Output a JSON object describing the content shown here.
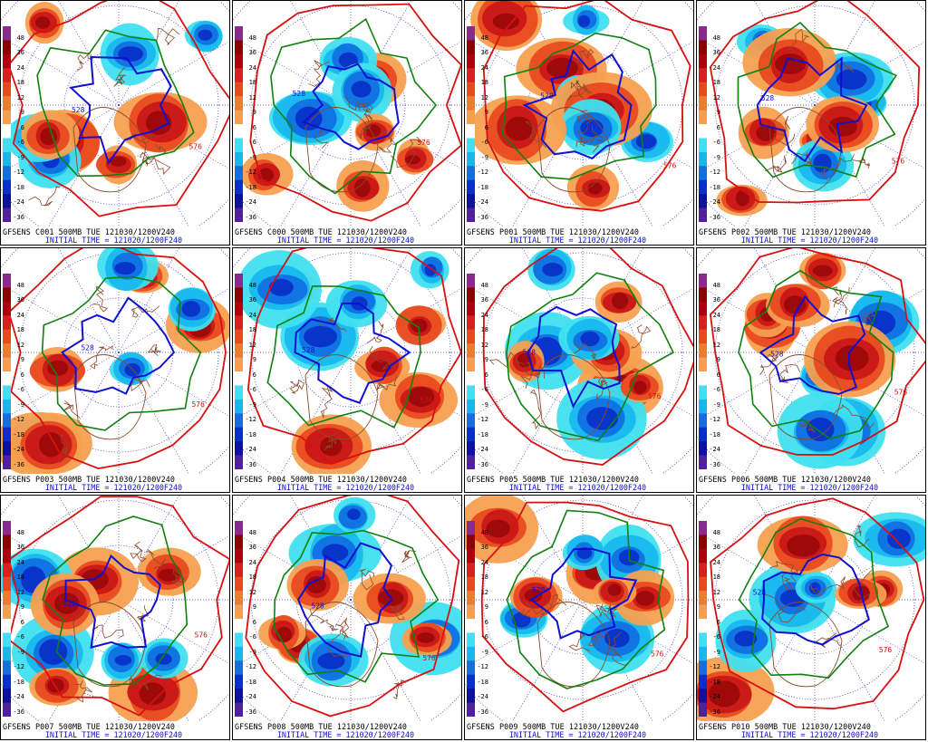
{
  "model": "GFSENS",
  "level": "500MB",
  "valid_time": "TUE 121030/1200V240",
  "initial_time_label": "INITIAL TIME =",
  "initial_time": "121020/1200F240",
  "contour_label": "528",
  "contour_label_secondary": "576",
  "colorbar": {
    "ticks": [
      "48",
      "36",
      "24",
      "18",
      "12",
      "9",
      "6",
      "-6",
      "-9",
      "-12",
      "-18",
      "-24",
      "-36"
    ],
    "colors": [
      "#8a2a8e",
      "#8b0000",
      "#b00010",
      "#d82020",
      "#e84a20",
      "#f07a30",
      "#f5a050",
      "#ffffff",
      "#40e0f0",
      "#18b8ee",
      "#1070e0",
      "#0830c8",
      "#1010a0",
      "#5020a0"
    ]
  },
  "members": [
    {
      "id": "C001",
      "row": 0,
      "col": 0
    },
    {
      "id": "C000",
      "row": 0,
      "col": 1
    },
    {
      "id": "P001",
      "row": 0,
      "col": 2
    },
    {
      "id": "P002",
      "row": 0,
      "col": 3
    },
    {
      "id": "P003",
      "row": 1,
      "col": 0
    },
    {
      "id": "P004",
      "row": 1,
      "col": 1
    },
    {
      "id": "P005",
      "row": 1,
      "col": 2
    },
    {
      "id": "P006",
      "row": 1,
      "col": 3
    },
    {
      "id": "P007",
      "row": 2,
      "col": 0
    },
    {
      "id": "P008",
      "row": 2,
      "col": 1
    },
    {
      "id": "P009",
      "row": 2,
      "col": 2
    },
    {
      "id": "P010",
      "row": 2,
      "col": 3
    }
  ]
}
